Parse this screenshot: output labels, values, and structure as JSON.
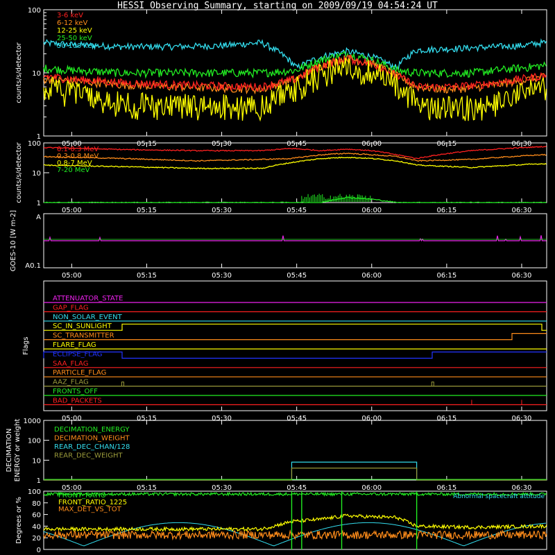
{
  "title": "HESSI Observing Summary, starting on 2009/09/19 04:54:24 UT",
  "time_ticks": [
    "05:00",
    "05:15",
    "05:30",
    "05:45",
    "06:00",
    "06:15",
    "06:30"
  ],
  "colors": {
    "red": "#ff2020",
    "orange": "#ff8c1a",
    "yellow": "#ffff00",
    "green": "#22ee22",
    "cyan": "#33ddee",
    "magenta": "#ee22ee",
    "blue": "#2233ff",
    "olive": "#9a9a3a",
    "frame": "#ffffff",
    "background": "#000000"
  },
  "chart_data": [
    {
      "id": "low_energy",
      "type": "line",
      "ylabel": "counts/s/detector",
      "yscale": "log",
      "ylim": [
        1,
        100
      ],
      "ytick_labels": [
        "1",
        "10",
        "100"
      ],
      "x": [
        "04:54",
        "05:00",
        "05:10",
        "05:20",
        "05:30",
        "05:38",
        "05:45",
        "05:50",
        "05:55",
        "06:00",
        "06:05",
        "06:09",
        "06:15",
        "06:20",
        "06:25",
        "06:30",
        "06:34"
      ],
      "series": [
        {
          "name": "3-6 keV",
          "color": "red",
          "values": [
            9,
            8,
            7,
            6.5,
            6.2,
            6,
            8,
            13,
            17,
            14,
            9,
            6,
            6,
            6.3,
            7,
            8,
            9
          ]
        },
        {
          "name": "6-12 keV",
          "color": "orange",
          "values": [
            8,
            7.5,
            6.5,
            6,
            5.8,
            5.5,
            8,
            13,
            17,
            14,
            9,
            6,
            5.5,
            5.8,
            6.5,
            7.5,
            8.5
          ]
        },
        {
          "name": "12-25 keV",
          "color": "yellow",
          "values": [
            8,
            6,
            4,
            3.8,
            3.8,
            3.6,
            7.5,
            12,
            16,
            13,
            8,
            4,
            3.5,
            3.6,
            4,
            6,
            8
          ]
        },
        {
          "name": "25-50 keV",
          "color": "green",
          "values": [
            12,
            11,
            10,
            10,
            10,
            10,
            11,
            16,
            20,
            16,
            11,
            10,
            10,
            10,
            11,
            12,
            13
          ]
        },
        {
          "name": "50-100 keV",
          "color": "cyan",
          "values": [
            30,
            28,
            26,
            26,
            27,
            30,
            12,
            18,
            22,
            18,
            12,
            23,
            24,
            25,
            26,
            27,
            30
          ]
        }
      ]
    },
    {
      "id": "high_energy",
      "type": "line",
      "ylabel": "counts/s/detector",
      "yscale": "log",
      "ylim": [
        1,
        100
      ],
      "ytick_labels": [
        "1",
        "10",
        "100"
      ],
      "x": [
        "04:54",
        "05:10",
        "05:25",
        "05:38",
        "05:44",
        "05:50",
        "05:55",
        "06:00",
        "06:05",
        "06:09",
        "06:20",
        "06:34"
      ],
      "series": [
        {
          "name": "0.1-0.3 MeV",
          "color": "red",
          "values": [
            70,
            60,
            55,
            55,
            65,
            55,
            62,
            55,
            40,
            30,
            55,
            75
          ]
        },
        {
          "name": "0.3-0.8 MeV",
          "color": "orange",
          "values": [
            35,
            30,
            25,
            28,
            30,
            40,
            45,
            40,
            35,
            25,
            28,
            40
          ]
        },
        {
          "name": "0.8-7 MeV",
          "color": "yellow",
          "values": [
            18,
            16,
            14,
            14,
            22,
            30,
            33,
            30,
            25,
            18,
            15,
            20
          ]
        },
        {
          "name": "7-20 MeV",
          "color": "green",
          "values": [
            1,
            1,
            1,
            1,
            1,
            1,
            1.5,
            1.3,
            1,
            1,
            1,
            1
          ]
        }
      ]
    },
    {
      "id": "goes",
      "type": "line",
      "ylabel": "GOES-10 [W m-2]",
      "ytick_labels": [
        "A0.1",
        "A"
      ],
      "series": [
        {
          "name": "GOES",
          "color": "magenta",
          "values": [
            0.3,
            0.3,
            0.3,
            0.3,
            0.3,
            0.3,
            0.3,
            0.3,
            0.3,
            0.3,
            0.3,
            0.3
          ]
        }
      ]
    },
    {
      "id": "flags",
      "type": "line",
      "ylabel": "Flags",
      "series": [
        {
          "name": "ATTENUATOR_STATE",
          "color": "magenta"
        },
        {
          "name": "GAP_FLAG",
          "color": "red"
        },
        {
          "name": "NON_SOLAR_EVENT",
          "color": "cyan"
        },
        {
          "name": "SC_IN_SUNLIGHT",
          "color": "yellow",
          "values": [
            0,
            1,
            1,
            0
          ],
          "x": [
            "04:54",
            "05:10",
            "06:12",
            "06:34"
          ]
        },
        {
          "name": "SC_TRANSMITTER",
          "color": "orange",
          "values": [
            0,
            1
          ],
          "x": [
            "04:54",
            "06:28"
          ]
        },
        {
          "name": "FLARE_FLAG",
          "color": "yellow"
        },
        {
          "name": "ECLIPSE_FLAG",
          "color": "blue",
          "values": [
            1,
            0,
            1
          ],
          "x": [
            "04:54",
            "05:10",
            "06:12"
          ]
        },
        {
          "name": "SAA_FLAG",
          "color": "red"
        },
        {
          "name": "PARTICLE_FLAG",
          "color": "orange"
        },
        {
          "name": "AAZ_FLAG",
          "color": "olive"
        },
        {
          "name": "FRONTS_OFF",
          "color": "green"
        },
        {
          "name": "BAD_PACKETS",
          "color": "red"
        }
      ]
    },
    {
      "id": "decimation",
      "type": "line",
      "ylabel": "DECIMATION ENERGY or weight",
      "yscale": "log",
      "ylim": [
        1,
        1000
      ],
      "ytick_labels": [
        "1",
        "10",
        "100",
        "1000"
      ],
      "series": [
        {
          "name": "DECIMATION_ENERGY",
          "color": "green"
        },
        {
          "name": "DECIMATION_WEIGHT",
          "color": "orange"
        },
        {
          "name": "REAR_DEC_CHAN/128",
          "color": "cyan",
          "values": [
            0,
            8,
            0
          ],
          "x": [
            "04:54",
            "05:44",
            "06:09"
          ]
        },
        {
          "name": "REAR_DEC_WEIGHT",
          "color": "olive",
          "values": [
            0,
            4,
            0
          ],
          "x": [
            "04:54",
            "05:44",
            "06:09"
          ]
        }
      ]
    },
    {
      "id": "ratios",
      "type": "line",
      "ylabel": "Degrees or %",
      "ylim": [
        0,
        100
      ],
      "ytick_labels": [
        "0",
        "20",
        "40",
        "60",
        "80",
        "100"
      ],
      "annotation": "Abnormal spacecraft attitude",
      "series": [
        {
          "name": "FRONT_RATIO",
          "color": "green",
          "values": [
            95,
            95,
            95,
            95,
            95,
            95,
            95,
            95,
            95,
            95,
            95,
            95
          ]
        },
        {
          "name": "FRONT_RATIO_1225",
          "color": "yellow",
          "values": [
            35,
            35,
            35,
            35,
            48,
            52,
            58,
            56,
            55,
            40,
            38,
            40
          ]
        },
        {
          "name": "MAX_DET_VS_TOT",
          "color": "orange",
          "values": [
            25,
            25,
            25,
            25,
            25,
            25,
            25,
            25,
            25,
            25,
            25,
            25
          ]
        }
      ]
    }
  ]
}
